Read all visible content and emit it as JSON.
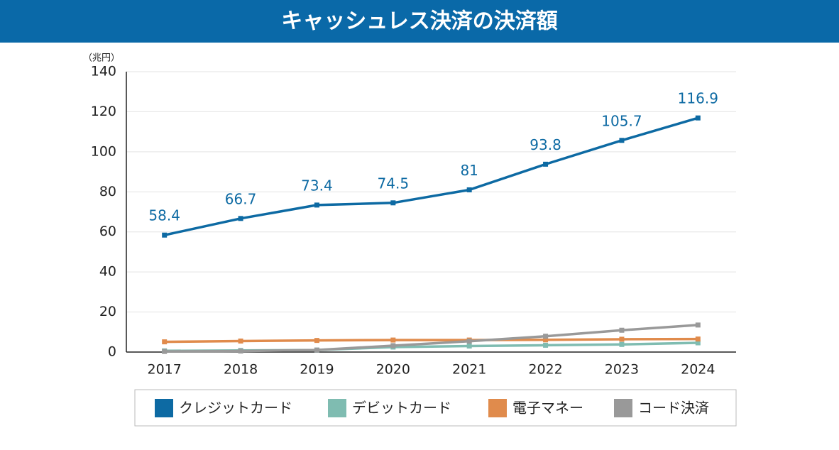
{
  "chart_data": {
    "type": "line",
    "title": "キャッシュレス決済の決済額",
    "y_label": "（兆円）",
    "categories": [
      "2017",
      "2018",
      "2019",
      "2020",
      "2021",
      "2022",
      "2023",
      "2024"
    ],
    "ylim": [
      0,
      140
    ],
    "yticks": [
      0,
      20,
      40,
      60,
      80,
      100,
      120,
      140
    ],
    "grid": true,
    "series": [
      {
        "name": "クレジットカード",
        "color": "#0d6aa3",
        "values": [
          58.4,
          66.7,
          73.4,
          74.5,
          81,
          93.8,
          105.7,
          116.9
        ],
        "data_labels": true
      },
      {
        "name": "デビットカード",
        "color": "#7fbcb1",
        "values": [
          0.6,
          0.8,
          1.0,
          2.5,
          3.0,
          3.4,
          3.8,
          4.6
        ]
      },
      {
        "name": "電子マネー",
        "color": "#e08b4c",
        "values": [
          5.1,
          5.5,
          5.8,
          6.0,
          6.0,
          6.1,
          6.4,
          6.5
        ]
      },
      {
        "name": "コード決済",
        "color": "#999999",
        "values": [
          0.3,
          0.5,
          1.0,
          3.2,
          5.4,
          7.9,
          10.9,
          13.5
        ]
      }
    ]
  }
}
